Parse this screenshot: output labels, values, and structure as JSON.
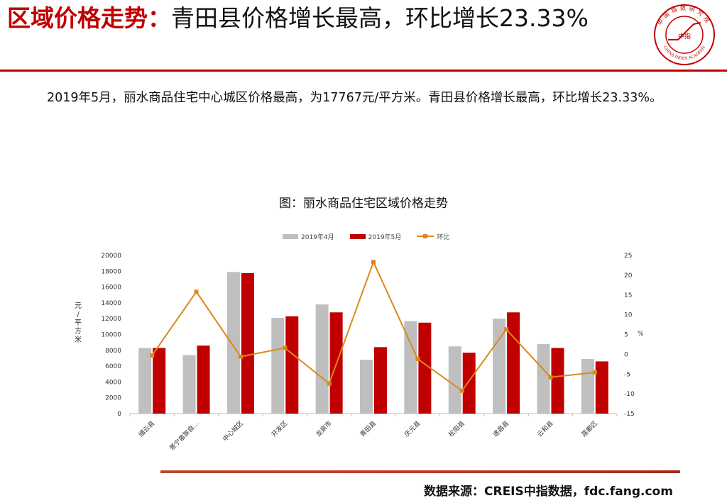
{
  "header": {
    "title_highlight": "区域价格走势：",
    "title_rest": "青田县价格增长最高，环比增长23.33%"
  },
  "logo": {
    "icon": "china-index-academy-seal",
    "text_top": "中国指数研究院",
    "text_bottom": "CHINA INDEX ACADEMY",
    "text_center": "中指"
  },
  "body": {
    "paragraph": "2019年5月，丽水商品住宅中心城区价格最高，为17767元/平方米。青田县价格增长最高，环比增长23.33%。"
  },
  "chart_title": "图：丽水商品住宅区域价格走势",
  "colors": {
    "apr": "#bfbfbf",
    "may": "#c00000",
    "mom": "#d9891c",
    "accent": "#c00000"
  },
  "chart_data": {
    "type": "bar",
    "categories": [
      "缙云县",
      "景宁畲族自…",
      "中心城区",
      "开发区",
      "龙泉市",
      "青田县",
      "庆元县",
      "松阳县",
      "遂昌县",
      "云和县",
      "莲都区"
    ],
    "series": [
      {
        "name": "2019年4月",
        "type": "bar",
        "axis": "left",
        "values": [
          8300,
          7400,
          17900,
          12100,
          13800,
          6800,
          11700,
          8500,
          12000,
          8800,
          6900
        ]
      },
      {
        "name": "2019年5月",
        "type": "bar",
        "axis": "left",
        "values": [
          8300,
          8600,
          17767,
          12300,
          12800,
          8400,
          11500,
          7700,
          12800,
          8300,
          6600
        ]
      },
      {
        "name": "环比",
        "type": "line",
        "axis": "right",
        "values": [
          -0.3,
          15.8,
          -0.6,
          1.6,
          -7.4,
          23.33,
          -1.2,
          -9.2,
          6.3,
          -5.8,
          -4.6
        ]
      }
    ],
    "ylabel": "元/平方米",
    "y2label": "%",
    "ylim": [
      0,
      20000
    ],
    "yticks": [
      0,
      2000,
      4000,
      6000,
      8000,
      10000,
      12000,
      14000,
      16000,
      18000,
      20000
    ],
    "y2lim": [
      -15,
      25
    ],
    "y2ticks": [
      -15,
      -10,
      -5,
      0,
      5,
      10,
      15,
      20,
      25
    ],
    "legend": "top"
  },
  "footer": {
    "source": "数据来源：CREIS中指数据，fdc.fang.com"
  }
}
